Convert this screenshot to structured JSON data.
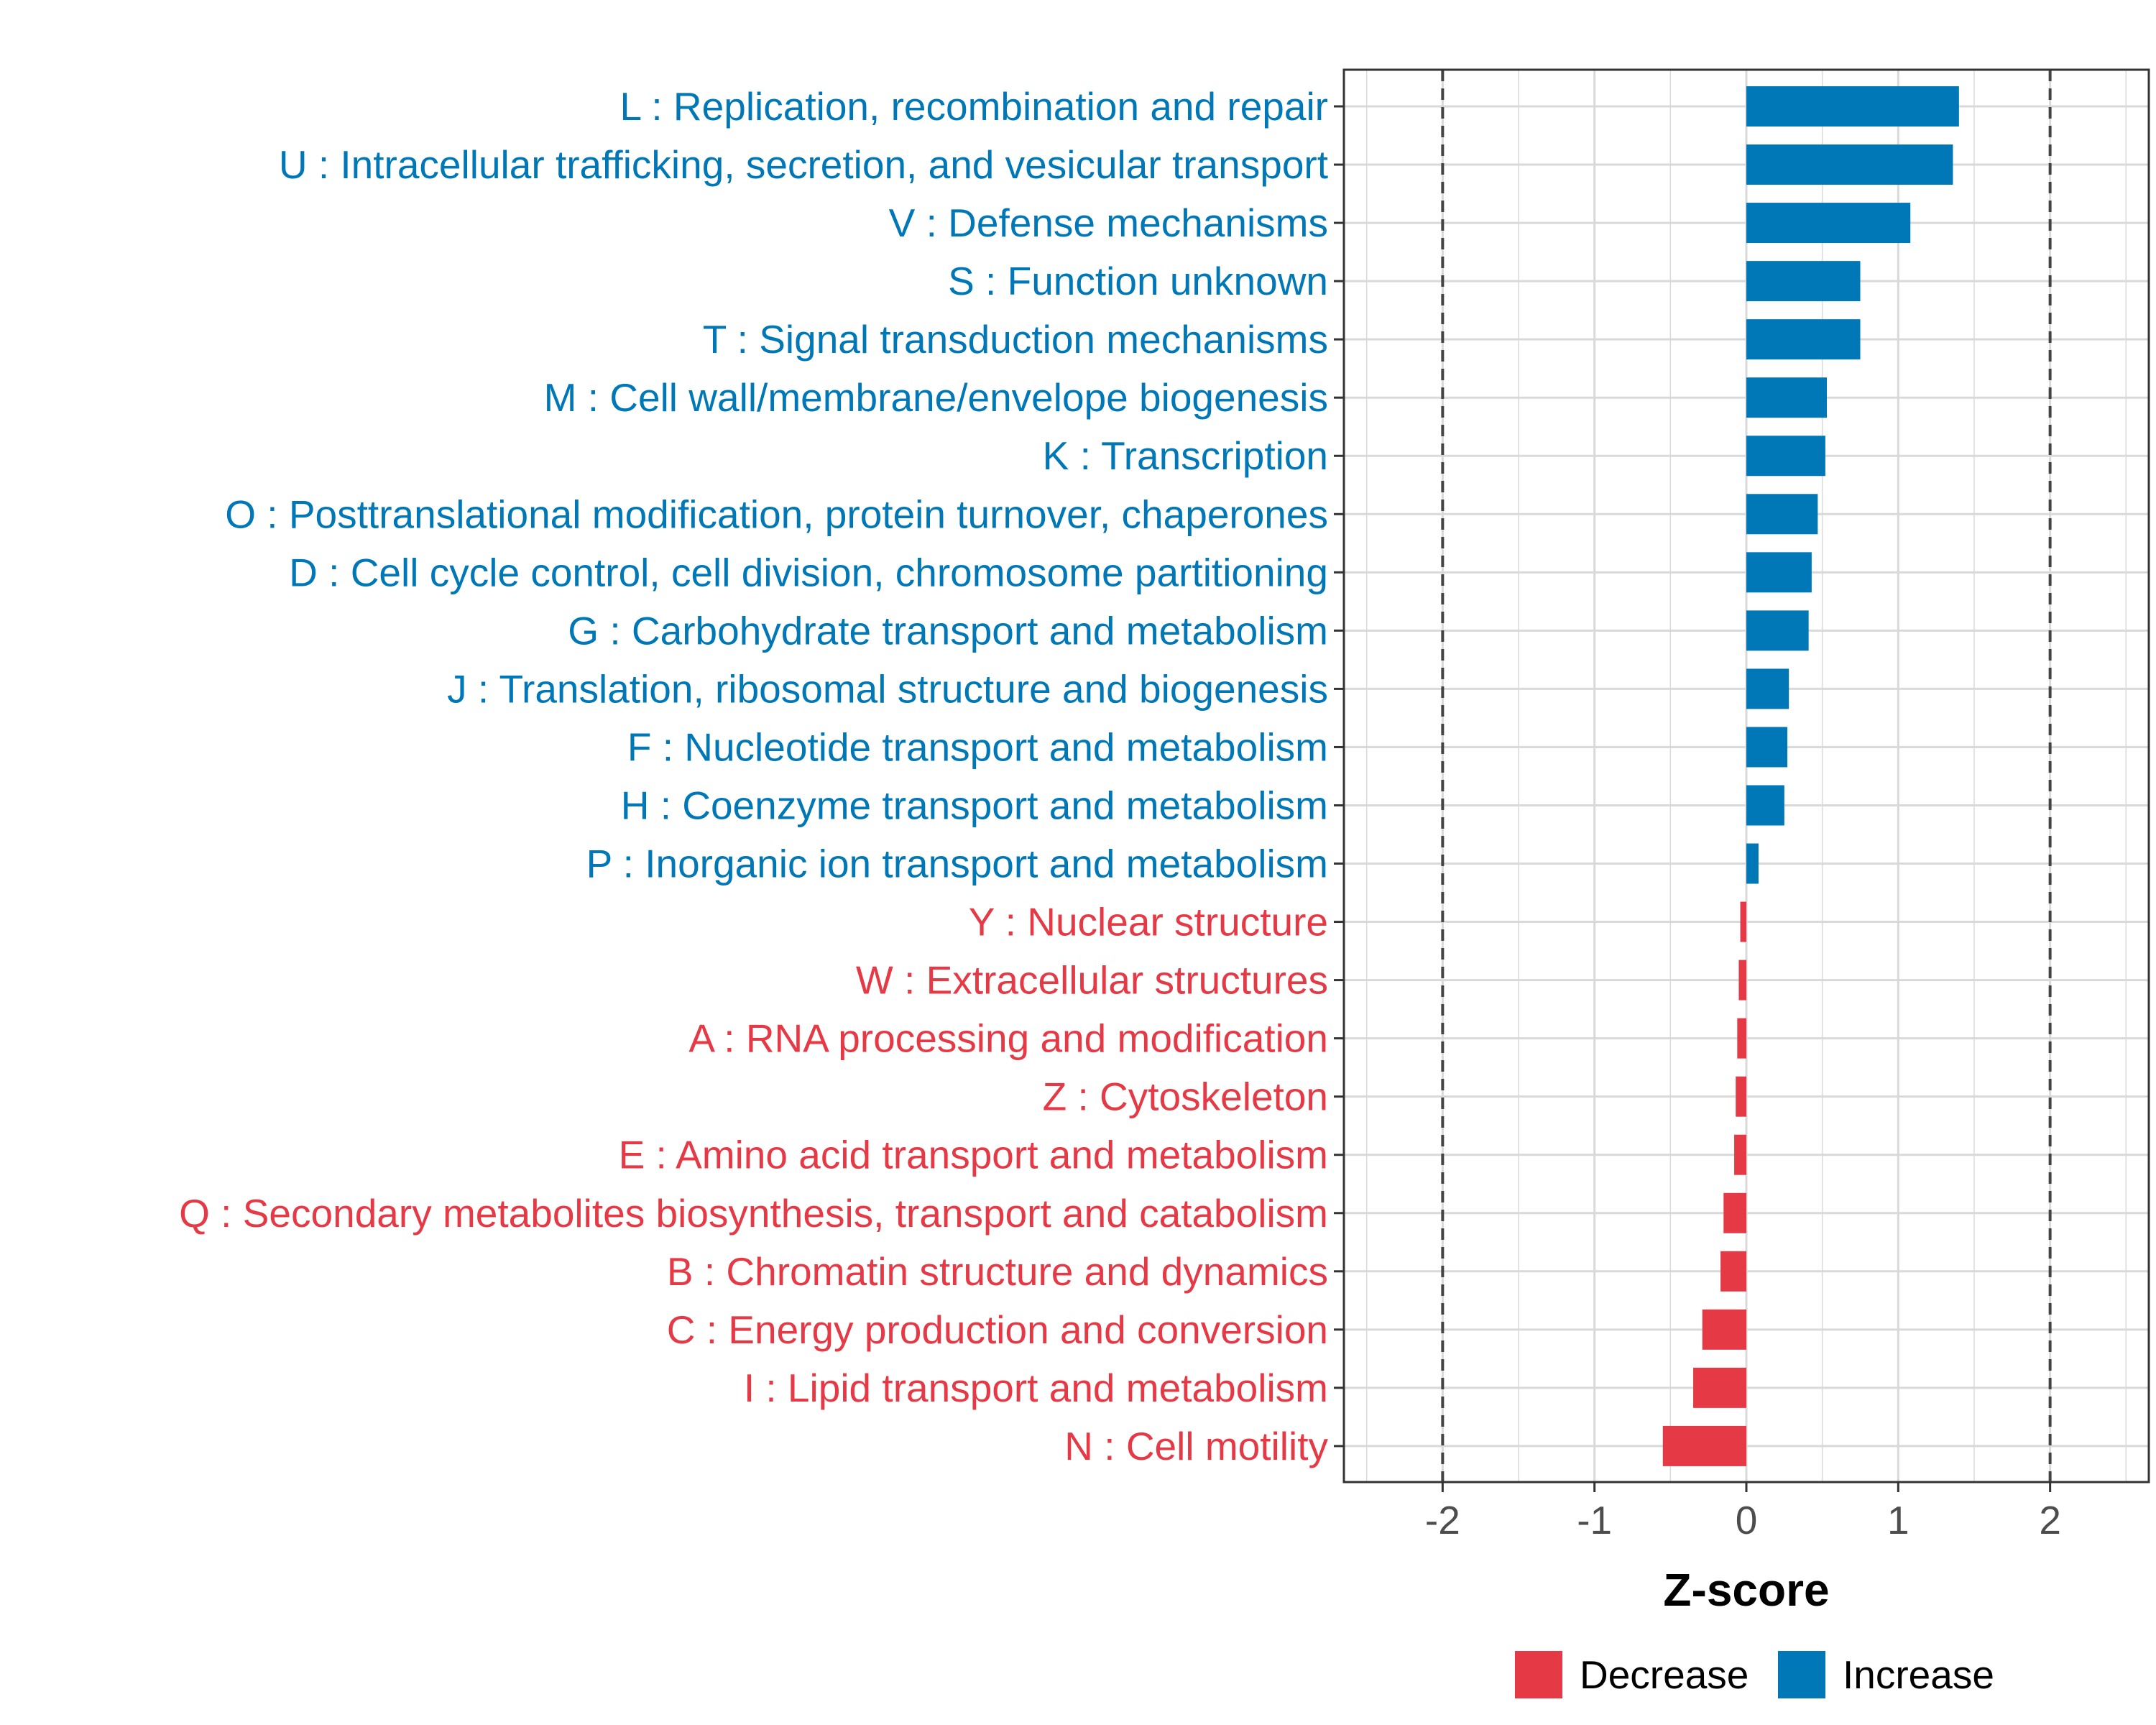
{
  "chart_data": {
    "type": "bar",
    "orientation": "horizontal",
    "title": "",
    "xlabel": "Z-score",
    "ylabel": "",
    "xlim": [
      -2.65,
      2.65
    ],
    "xticks": [
      -2,
      -1,
      0,
      1,
      2
    ],
    "xtick_labels": [
      "-2",
      "-1",
      "0",
      "1",
      "2"
    ],
    "reference_lines": [
      -2,
      2
    ],
    "grid": true,
    "legend_position": "bottom",
    "colors": {
      "Increase": "#0077b6",
      "Decrease": "#e63946",
      "axis": "#333333",
      "grid": "#d9d9d9",
      "refline": "#444444"
    },
    "legend": [
      {
        "label": "Decrease",
        "color": "#e63946"
      },
      {
        "label": "Increase",
        "color": "#0077b6"
      }
    ],
    "categories": [
      "L : Replication, recombination and repair",
      "U : Intracellular trafficking, secretion, and vesicular transport",
      "V : Defense mechanisms",
      "S : Function unknown",
      "T : Signal transduction mechanisms",
      "M : Cell wall/membrane/envelope biogenesis",
      "K : Transcription",
      "O : Posttranslational modification, protein turnover, chaperones",
      "D : Cell cycle control, cell division, chromosome partitioning",
      "G : Carbohydrate transport and metabolism",
      "J : Translation, ribosomal structure and biogenesis",
      "F : Nucleotide transport and metabolism",
      "H : Coenzyme transport and metabolism",
      "P : Inorganic ion transport and metabolism",
      "Y : Nuclear structure",
      "W : Extracellular structures",
      "A : RNA processing and modification",
      "Z : Cytoskeleton",
      "E : Amino acid transport and metabolism",
      "Q : Secondary metabolites biosynthesis, transport and catabolism",
      "B : Chromatin structure and dynamics",
      "C : Energy production and conversion",
      "I : Lipid transport and metabolism",
      "N : Cell motility"
    ],
    "values": [
      1.4,
      1.36,
      1.08,
      0.75,
      0.75,
      0.53,
      0.52,
      0.47,
      0.43,
      0.41,
      0.28,
      0.27,
      0.25,
      0.08,
      -0.04,
      -0.05,
      -0.06,
      -0.07,
      -0.08,
      -0.15,
      -0.17,
      -0.29,
      -0.35,
      -0.55
    ],
    "direction": [
      "Increase",
      "Increase",
      "Increase",
      "Increase",
      "Increase",
      "Increase",
      "Increase",
      "Increase",
      "Increase",
      "Increase",
      "Increase",
      "Increase",
      "Increase",
      "Increase",
      "Decrease",
      "Decrease",
      "Decrease",
      "Decrease",
      "Decrease",
      "Decrease",
      "Decrease",
      "Decrease",
      "Decrease",
      "Decrease"
    ]
  }
}
